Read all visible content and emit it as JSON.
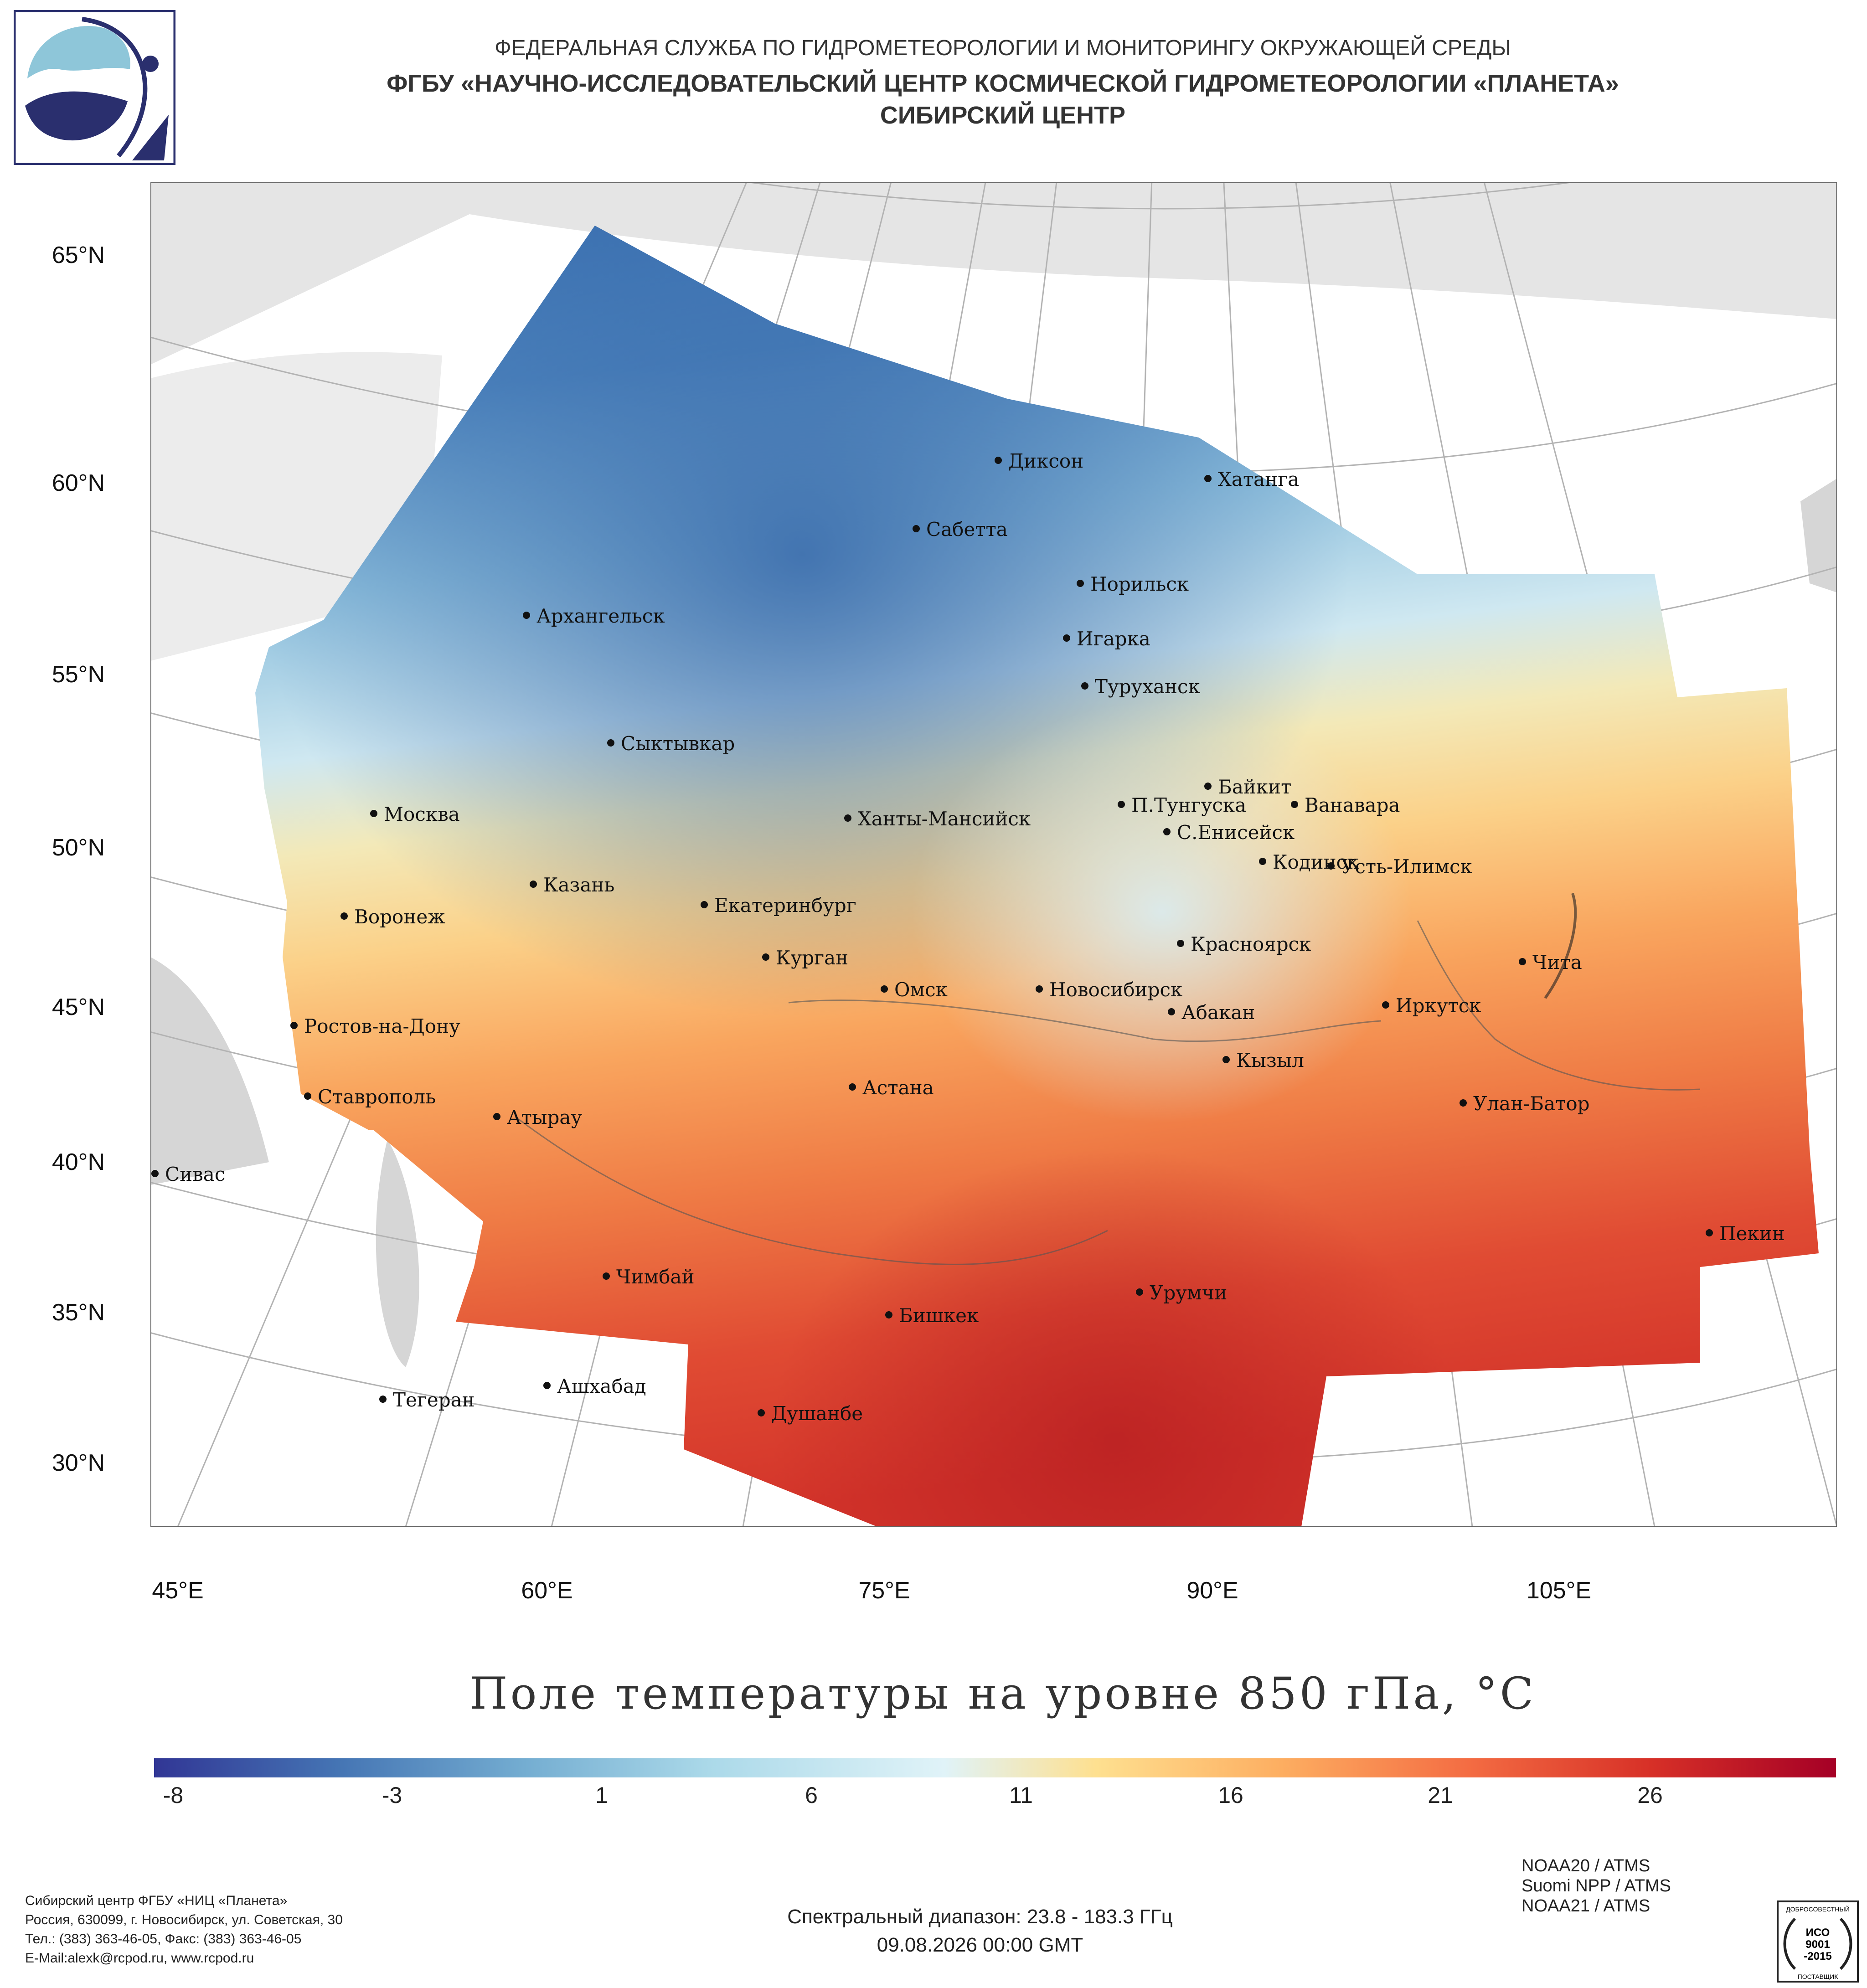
{
  "header": {
    "line1": "ФЕДЕРАЛЬНАЯ СЛУЖБА ПО ГИДРОМЕТЕОРОЛОГИИ И МОНИТОРИНГУ ОКРУЖАЮЩЕЙ СРЕДЫ",
    "line2": "ФГБУ «НАУЧНО-ИССЛЕДОВАТЕЛЬСКИЙ ЦЕНТР КОСМИЧЕСКОЙ ГИДРОМЕТЕОРОЛОГИИ «ПЛАНЕТА»",
    "line3": "СИБИРСКИЙ ЦЕНТР"
  },
  "map": {
    "title": "Поле температуры на уровне 850 гПа, °C",
    "lat_labels": [
      "65°N",
      "60°N",
      "55°N",
      "50°N",
      "45°N",
      "40°N",
      "35°N",
      "30°N"
    ],
    "lon_labels": [
      "45°E",
      "60°E",
      "75°E",
      "90°E",
      "105°E"
    ],
    "cities": [
      {
        "name": "Диксон",
        "lat": 73.5,
        "lon": 80.5
      },
      {
        "name": "Хатанга",
        "lat": 72.0,
        "lon": 102.5
      },
      {
        "name": "Сабетта",
        "lat": 71.3,
        "lon": 72.0
      },
      {
        "name": "Норильск",
        "lat": 69.3,
        "lon": 88.2
      },
      {
        "name": "Архангельск",
        "lat": 64.5,
        "lon": 40.5
      },
      {
        "name": "Игарка",
        "lat": 67.5,
        "lon": 86.6
      },
      {
        "name": "Туруханск",
        "lat": 65.8,
        "lon": 87.9
      },
      {
        "name": "Сыктывкар",
        "lat": 61.7,
        "lon": 50.8
      },
      {
        "name": "Байкит",
        "lat": 61.7,
        "lon": 96.4
      },
      {
        "name": "П.Тунгуска",
        "lat": 61.6,
        "lon": 92.6
      },
      {
        "name": "Ванавара",
        "lat": 60.3,
        "lon": 102.3
      },
      {
        "name": "Москва",
        "lat": 55.8,
        "lon": 37.6
      },
      {
        "name": "Ханты-Мансийск",
        "lat": 61.0,
        "lon": 69.0
      },
      {
        "name": "С.Енисейск",
        "lat": 58.5,
        "lon": 92.2
      },
      {
        "name": "Кодинск",
        "lat": 58.6,
        "lon": 99.2
      },
      {
        "name": "Усть-Илимск",
        "lat": 58.0,
        "lon": 102.7
      },
      {
        "name": "Казань",
        "lat": 55.8,
        "lon": 49.1
      },
      {
        "name": "Екатеринбург",
        "lat": 56.8,
        "lon": 60.6
      },
      {
        "name": "Воронеж",
        "lat": 51.7,
        "lon": 39.2
      },
      {
        "name": "Курган",
        "lat": 55.4,
        "lon": 65.3
      },
      {
        "name": "Красноярск",
        "lat": 56.0,
        "lon": 92.9
      },
      {
        "name": "Чита",
        "lat": 52.0,
        "lon": 113.5
      },
      {
        "name": "Омск",
        "lat": 55.0,
        "lon": 73.4
      },
      {
        "name": "Новосибирск",
        "lat": 55.0,
        "lon": 82.9
      },
      {
        "name": "Ростов-на-Дону",
        "lat": 47.2,
        "lon": 39.7
      },
      {
        "name": "Иркутск",
        "lat": 52.3,
        "lon": 104.3
      },
      {
        "name": "Абакан",
        "lat": 53.7,
        "lon": 91.4
      },
      {
        "name": "Кызыл",
        "lat": 51.7,
        "lon": 94.4
      },
      {
        "name": "Ставрополь",
        "lat": 45.0,
        "lon": 42.0
      },
      {
        "name": "Астана",
        "lat": 51.2,
        "lon": 71.4
      },
      {
        "name": "Улан-Батор",
        "lat": 47.9,
        "lon": 106.9
      },
      {
        "name": "Атырау",
        "lat": 47.1,
        "lon": 51.9
      },
      {
        "name": "Сивас",
        "lat": 39.7,
        "lon": 37.0
      },
      {
        "name": "Пекин",
        "lat": 39.9,
        "lon": 116.4
      },
      {
        "name": "Чимбай",
        "lat": 42.9,
        "lon": 59.8
      },
      {
        "name": "Урумчи",
        "lat": 43.8,
        "lon": 87.6
      },
      {
        "name": "Бишкек",
        "lat": 42.9,
        "lon": 74.6
      },
      {
        "name": "Ашхабад",
        "lat": 37.9,
        "lon": 58.4
      },
      {
        "name": "Тегеран",
        "lat": 35.7,
        "lon": 51.4
      },
      {
        "name": "Душанбе",
        "lat": 38.6,
        "lon": 68.8
      }
    ]
  },
  "colorbar": {
    "tick_labels": [
      "-8",
      "-3",
      "1",
      "6",
      "11",
      "16",
      "21",
      "26"
    ],
    "colors": [
      "#313695",
      "#4575b4",
      "#74add1",
      "#abd9e9",
      "#e0f3f8",
      "#fee090",
      "#fdae61",
      "#f46d43",
      "#d73027",
      "#a50026"
    ]
  },
  "footer": {
    "org_line1": "Сибирский центр ФГБУ «НИЦ «Планета»",
    "org_line2": "Россия, 630099, г. Новосибирск, ул. Советская, 30",
    "org_line3": "Тел.: (383) 363-46-05, Факс: (383) 363-46-05",
    "org_line4": "E-Mail:alexk@rcpod.ru, www.rcpod.ru",
    "spectral": "Спектральный диапазон: 23.8 - 183.3 ГГц",
    "datetime": "09.08.2026 00:00 GMT",
    "sensors": [
      "NOAA20 / ATMS",
      "Suomi NPP / ATMS",
      "NOAA21 / ATMS"
    ],
    "iso_top": "ДОБРОСОВЕСТНЫЙ",
    "iso_mid1": "ИСО",
    "iso_mid2": "9001",
    "iso_mid3": "-2015",
    "iso_bottom": "ПОСТАВЩИК"
  }
}
